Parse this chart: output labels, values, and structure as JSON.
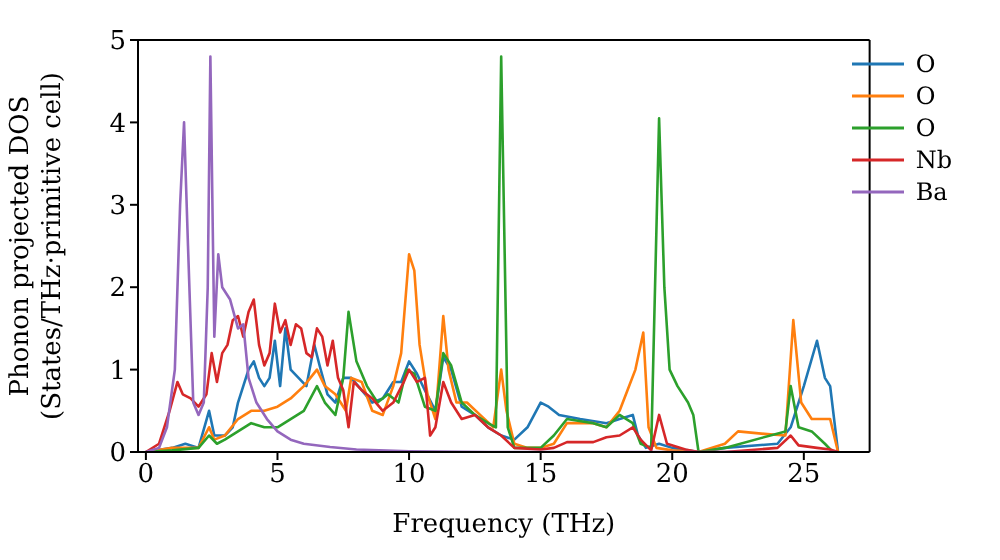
{
  "chart_data": {
    "type": "line",
    "xlabel": "Frequency (THz)",
    "ylabel": "Phonon projected DOS\n(States/THz·primitive cell)",
    "xlim": [
      -0.3,
      27.5
    ],
    "ylim": [
      0,
      5
    ],
    "xticks": [
      0,
      5,
      10,
      15,
      20,
      25
    ],
    "yticks": [
      0,
      1,
      2,
      3,
      4,
      5
    ],
    "legend": "top right",
    "marker": "none",
    "line_style": "solid",
    "series": [
      {
        "name": "O",
        "color": "#1f77b4",
        "x": [
          0,
          1,
          1.5,
          2,
          2.4,
          2.6,
          3,
          3.3,
          3.5,
          3.7,
          3.9,
          4.1,
          4.3,
          4.5,
          4.7,
          4.9,
          5.1,
          5.3,
          5.5,
          5.8,
          6.1,
          6.4,
          6.6,
          6.9,
          7.2,
          7.5,
          7.8,
          8.2,
          8.6,
          9,
          9.4,
          9.7,
          10,
          10.3,
          10.6,
          11,
          11.3,
          11.6,
          12,
          12.5,
          13,
          13.5,
          14,
          14.5,
          15,
          15.3,
          15.7,
          16.5,
          17.5,
          18,
          18.5,
          18.7,
          19,
          19.5,
          20,
          21,
          22,
          24,
          24.5,
          25,
          25.5,
          25.8,
          26,
          26.3
        ],
        "values": [
          0,
          0.05,
          0.1,
          0.05,
          0.5,
          0.2,
          0.2,
          0.3,
          0.6,
          0.8,
          1.0,
          1.1,
          0.9,
          0.8,
          0.9,
          1.35,
          0.8,
          1.5,
          1.0,
          0.9,
          0.8,
          1.3,
          1.05,
          0.7,
          0.6,
          0.9,
          0.9,
          0.75,
          0.6,
          0.65,
          0.85,
          0.85,
          1.1,
          0.95,
          0.75,
          0.5,
          1.15,
          1.0,
          0.55,
          0.45,
          0.3,
          0.2,
          0.15,
          0.3,
          0.6,
          0.55,
          0.45,
          0.4,
          0.35,
          0.4,
          0.45,
          0.2,
          0.05,
          0.1,
          0.05,
          0,
          0.05,
          0.1,
          0.3,
          0.8,
          1.35,
          0.9,
          0.8,
          0
        ]
      },
      {
        "name": "O",
        "color": "#ff7f0e",
        "x": [
          0,
          1,
          2,
          2.4,
          2.6,
          3,
          3.5,
          4,
          4.5,
          5,
          5.5,
          6,
          6.5,
          6.8,
          7.2,
          7.6,
          7.8,
          8.2,
          8.6,
          9,
          9.4,
          9.7,
          10,
          10.2,
          10.4,
          10.7,
          11,
          11.3,
          11.5,
          11.8,
          12.2,
          12.7,
          13.2,
          13.5,
          13.7,
          14,
          14.5,
          15,
          15.5,
          16,
          17,
          17.5,
          18,
          18.3,
          18.6,
          18.9,
          19.1,
          19.4,
          20,
          21,
          22,
          22.5,
          23.5,
          24.3,
          24.6,
          24.9,
          25.3,
          25.8,
          26,
          26.3
        ],
        "values": [
          0,
          0.05,
          0.05,
          0.3,
          0.15,
          0.2,
          0.4,
          0.5,
          0.5,
          0.55,
          0.65,
          0.8,
          1.0,
          0.8,
          0.7,
          0.5,
          0.9,
          0.85,
          0.5,
          0.45,
          0.8,
          1.2,
          2.4,
          2.2,
          1.3,
          0.7,
          0.4,
          1.65,
          1.0,
          0.6,
          0.6,
          0.45,
          0.3,
          1.0,
          0.5,
          0.1,
          0.05,
          0.05,
          0.1,
          0.35,
          0.35,
          0.3,
          0.5,
          0.75,
          1.0,
          1.45,
          0.3,
          0.05,
          0.02,
          0,
          0.1,
          0.25,
          0.22,
          0.2,
          1.6,
          0.6,
          0.4,
          0.4,
          0.4,
          0
        ]
      },
      {
        "name": "O",
        "color": "#2ca02c",
        "x": [
          0,
          1,
          2,
          2.4,
          2.7,
          3,
          3.5,
          4,
          4.5,
          5,
          5.5,
          6,
          6.5,
          6.8,
          7.2,
          7.5,
          7.7,
          8,
          8.4,
          8.8,
          9.2,
          9.6,
          9.9,
          10.2,
          10.6,
          11,
          11.3,
          11.6,
          12,
          12.5,
          13,
          13.3,
          13.5,
          13.75,
          14,
          15,
          15.5,
          16,
          17,
          17.5,
          18,
          18.5,
          18.8,
          19.2,
          19.5,
          19.7,
          19.9,
          20.2,
          20.6,
          20.8,
          21,
          22,
          24.3,
          24.5,
          24.8,
          25.3,
          25.8,
          26.1
        ],
        "values": [
          0,
          0.02,
          0.05,
          0.2,
          0.1,
          0.15,
          0.25,
          0.35,
          0.3,
          0.3,
          0.4,
          0.5,
          0.8,
          0.6,
          0.45,
          0.9,
          1.7,
          1.1,
          0.8,
          0.6,
          0.7,
          0.6,
          1.0,
          0.95,
          0.55,
          0.5,
          1.2,
          1.05,
          0.6,
          0.45,
          0.35,
          0.3,
          4.8,
          0.3,
          0.05,
          0.05,
          0.2,
          0.4,
          0.35,
          0.3,
          0.45,
          0.35,
          0.1,
          0.05,
          4.05,
          2.0,
          1.0,
          0.8,
          0.6,
          0.45,
          0,
          0.05,
          0.25,
          0.8,
          0.3,
          0.25,
          0.1,
          0
        ]
      },
      {
        "name": "Nb",
        "color": "#d62728",
        "x": [
          0,
          0.5,
          0.9,
          1.2,
          1.4,
          1.7,
          2,
          2.3,
          2.5,
          2.7,
          2.9,
          3.1,
          3.3,
          3.5,
          3.7,
          3.9,
          4.1,
          4.3,
          4.5,
          4.7,
          4.9,
          5.1,
          5.3,
          5.5,
          5.7,
          5.9,
          6.1,
          6.3,
          6.5,
          6.7,
          6.9,
          7.1,
          7.3,
          7.5,
          7.7,
          7.9,
          8.2,
          8.6,
          9,
          9.4,
          9.8,
          10,
          10.3,
          10.6,
          10.8,
          11,
          11.3,
          11.6,
          12,
          12.5,
          13,
          13.5,
          14,
          15,
          15.5,
          16,
          17,
          17.5,
          18,
          18.5,
          18.8,
          19.2,
          19.5,
          19.8,
          20.5,
          21,
          22,
          24,
          24.5,
          24.8,
          25.5,
          26,
          26.3
        ],
        "values": [
          0,
          0.1,
          0.5,
          0.85,
          0.7,
          0.65,
          0.55,
          0.7,
          1.2,
          0.85,
          1.2,
          1.3,
          1.6,
          1.65,
          1.4,
          1.7,
          1.85,
          1.3,
          1.05,
          1.2,
          1.8,
          1.45,
          1.6,
          1.3,
          1.55,
          1.5,
          1.2,
          1.15,
          1.5,
          1.4,
          1.05,
          1.35,
          0.9,
          0.75,
          0.3,
          0.85,
          0.75,
          0.65,
          0.5,
          0.6,
          0.85,
          1.0,
          0.85,
          0.9,
          0.2,
          0.3,
          0.85,
          0.6,
          0.4,
          0.45,
          0.3,
          0.2,
          0.05,
          0.03,
          0.05,
          0.12,
          0.12,
          0.18,
          0.2,
          0.3,
          0.15,
          0.02,
          0.45,
          0.1,
          0.03,
          0,
          0,
          0.05,
          0.2,
          0.08,
          0.05,
          0.03,
          0
        ]
      },
      {
        "name": "Ba",
        "color": "#9467bd",
        "x": [
          0,
          0.5,
          0.8,
          1.1,
          1.3,
          1.45,
          1.6,
          1.8,
          2,
          2.2,
          2.35,
          2.45,
          2.55,
          2.6,
          2.75,
          2.9,
          3.2,
          3.5,
          3.7,
          3.9,
          4.2,
          4.6,
          5,
          5.5,
          6,
          7,
          8,
          10,
          13,
          20,
          26.3
        ],
        "values": [
          0,
          0.05,
          0.3,
          1.0,
          3.0,
          4.0,
          2.5,
          0.6,
          0.45,
          0.6,
          2.0,
          4.8,
          2.5,
          1.4,
          2.4,
          2.0,
          1.85,
          1.5,
          1.55,
          0.9,
          0.6,
          0.4,
          0.25,
          0.15,
          0.1,
          0.06,
          0.03,
          0.01,
          0,
          0,
          0
        ]
      }
    ]
  }
}
